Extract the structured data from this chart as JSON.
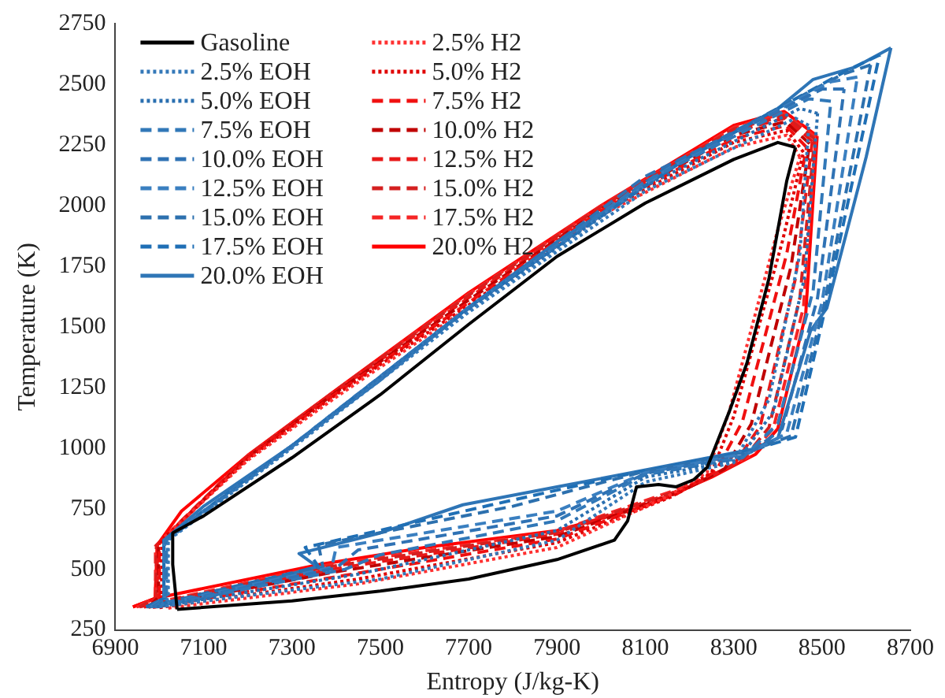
{
  "chart_data": {
    "type": "line",
    "xlabel": "Entropy (J/kg-K)",
    "ylabel": "Temperature (K)",
    "xlim": [
      6900,
      8700
    ],
    "xticks": [
      6900,
      7100,
      7300,
      7500,
      7700,
      7900,
      8100,
      8300,
      8500,
      8700
    ],
    "ylim": [
      250,
      2750
    ],
    "yticks": [
      250,
      500,
      750,
      1000,
      1250,
      1500,
      1750,
      2000,
      2250,
      2500,
      2750
    ],
    "grid": false,
    "legend": "top left",
    "series": [
      {
        "name": "Gasoline",
        "color": "#000000",
        "line_style": "solid",
        "x": [
          7040,
          7300,
          7500,
          7700,
          7900,
          8030,
          8060,
          8080,
          8130,
          8170,
          8210,
          8240,
          8290,
          8330,
          8380,
          8420,
          8440
        ],
        "values": [
          335,
          370,
          410,
          460,
          540,
          620,
          700,
          840,
          850,
          840,
          870,
          920,
          1150,
          1350,
          1700,
          2100,
          2240
        ]
      },
      {
        "color": "#000000",
        "line_style": "solid",
        "x": [
          8440,
          8400,
          8300,
          8100,
          7900,
          7700,
          7500,
          7300,
          7100,
          7030,
          7030,
          7040
        ],
        "values": [
          2240,
          2260,
          2190,
          2010,
          1790,
          1510,
          1220,
          960,
          720,
          650,
          520,
          335
        ]
      },
      {
        "name": "2.5% EOH",
        "color": "#3579b9",
        "line_style": "dotted",
        "x": [
          7000,
          7500,
          7900,
          8100,
          8300,
          8380,
          8450,
          8470
        ],
        "values": [
          345,
          460,
          620,
          860,
          940,
          1200,
          1800,
          2330
        ]
      },
      {
        "color": "#3579b9",
        "line_style": "dotted",
        "x": [
          8470,
          8440,
          8100,
          7700,
          7300,
          7020,
          7020,
          7000
        ],
        "values": [
          2330,
          2360,
          2060,
          1560,
          1000,
          620,
          380,
          345
        ]
      },
      {
        "name": "5.0% EOH",
        "color": "#2a6fb0",
        "line_style": "dotted",
        "x": [
          6995,
          7450,
          7900,
          8100,
          8310,
          8390,
          8460,
          8490
        ],
        "values": [
          345,
          480,
          660,
          880,
          950,
          1150,
          1700,
          2380
        ]
      },
      {
        "color": "#2a6fb0",
        "line_style": "dotted",
        "x": [
          8490,
          8450,
          8100,
          7700,
          7300,
          7018,
          7018,
          6995
        ],
        "values": [
          2380,
          2400,
          2080,
          1570,
          1005,
          620,
          380,
          345
        ]
      },
      {
        "name": "7.5% EOH",
        "color": "#3178b8",
        "line_style": "dashed",
        "x": [
          6990,
          7420,
          7500,
          7900,
          8100,
          8320,
          8400,
          8480,
          8520
        ],
        "values": [
          345,
          500,
          560,
          700,
          890,
          960,
          1100,
          1650,
          2430
        ]
      },
      {
        "color": "#3178b8",
        "line_style": "dashed",
        "x": [
          8520,
          8470,
          8100,
          7700,
          7300,
          7016,
          7016,
          6990
        ],
        "values": [
          2430,
          2440,
          2100,
          1575,
          1005,
          620,
          380,
          345
        ]
      },
      {
        "name": "10.0% EOH",
        "color": "#2f72b4",
        "line_style": "dashed",
        "x": [
          6985,
          7400,
          7450,
          7900,
          8100,
          8330,
          8410,
          8490,
          8550
        ],
        "values": [
          345,
          505,
          580,
          720,
          895,
          970,
          1080,
          1620,
          2480
        ]
      },
      {
        "color": "#2f72b4",
        "line_style": "dashed",
        "x": [
          8550,
          8500,
          8100,
          7700,
          7300,
          7014,
          7014,
          6985
        ],
        "values": [
          2480,
          2480,
          2120,
          1578,
          1008,
          620,
          380,
          345
        ]
      },
      {
        "name": "12.5% EOH",
        "color": "#3a7fc0",
        "line_style": "dashed",
        "x": [
          6980,
          7390,
          7400,
          7900,
          8100,
          8335,
          8420,
          8500,
          8580
        ],
        "values": [
          345,
          508,
          590,
          740,
          898,
          980,
          1060,
          1600,
          2530
        ]
      },
      {
        "color": "#3a7fc0",
        "line_style": "dashed",
        "x": [
          8580,
          8520,
          8150,
          7700,
          7300,
          7012,
          7012,
          6980
        ],
        "values": [
          2530,
          2510,
          2150,
          1580,
          1010,
          620,
          380,
          345
        ]
      },
      {
        "name": "15.0% EOH",
        "color": "#2c70ae",
        "line_style": "dashed",
        "x": [
          6975,
          7370,
          7360,
          7800,
          8090,
          8338,
          8430,
          8505,
          8610
        ],
        "values": [
          345,
          510,
          600,
          760,
          900,
          988,
          1050,
          1590,
          2580
        ]
      },
      {
        "color": "#2c70ae",
        "line_style": "dashed",
        "x": [
          8610,
          8545,
          8150,
          7700,
          7300,
          7011,
          7011,
          6975
        ],
        "values": [
          2580,
          2540,
          2160,
          1580,
          1010,
          620,
          380,
          345
        ]
      },
      {
        "name": "17.5% EOH",
        "color": "#1f6fb5",
        "line_style": "dashed",
        "x": [
          6972,
          7360,
          7330,
          7750,
          8080,
          8339,
          8440,
          8508,
          8630
        ],
        "values": [
          345,
          511,
          590,
          765,
          900,
          990,
          1045,
          1580,
          2620
        ]
      },
      {
        "color": "#1f6fb5",
        "line_style": "dashed",
        "x": [
          8630,
          8560,
          8180,
          7700,
          7300,
          7010,
          7010,
          6972
        ],
        "values": [
          2620,
          2560,
          2180,
          1580,
          1010,
          620,
          380,
          345
        ]
      },
      {
        "name": "20.0% EOH",
        "color": "#2e75b6",
        "line_style": "solid",
        "x": [
          6970,
          7100,
          7357,
          7316,
          7500,
          7687,
          7900,
          8073,
          8340,
          8400,
          8474,
          8511,
          8600,
          8656
        ],
        "values": [
          345,
          380,
          511,
          565,
          650,
          766,
          840,
          900,
          994,
          1040,
          1483,
          1577,
          2200,
          2650
        ]
      },
      {
        "color": "#2e75b6",
        "line_style": "solid",
        "x": [
          8656,
          8574,
          8480,
          8400,
          8200,
          7900,
          7700,
          7500,
          7300,
          7100,
          7010,
          7010,
          6970
        ],
        "values": [
          2650,
          2570,
          2520,
          2400,
          2200,
          1850,
          1580,
          1280,
          1010,
          760,
          620,
          380,
          345
        ]
      },
      {
        "name": "2.5% H2",
        "color": "#ff3030",
        "line_style": "dotted",
        "x": [
          7020,
          7450,
          7900,
          8150,
          8240,
          8290,
          8400,
          8450
        ],
        "values": [
          340,
          440,
          590,
          800,
          900,
          1150,
          1900,
          2200
        ]
      },
      {
        "color": "#ff3030",
        "line_style": "dotted",
        "x": [
          8450,
          8420,
          8300,
          8000,
          7700,
          7400,
          7200,
          7010,
          7010,
          7020
        ],
        "values": [
          2200,
          2290,
          2240,
          1960,
          1580,
          1210,
          950,
          630,
          380,
          340
        ]
      },
      {
        "name": "5.0% H2",
        "color": "#e00000",
        "line_style": "dotted",
        "x": [
          7000,
          7450,
          7900,
          8160,
          8250,
          8300,
          8410,
          8458
        ],
        "values": [
          342,
          460,
          610,
          800,
          900,
          1130,
          1850,
          2220
        ]
      },
      {
        "color": "#e00000",
        "line_style": "dotted",
        "x": [
          8458,
          8420,
          8300,
          8000,
          7700,
          7400,
          7200,
          7005,
          7005,
          7000
        ],
        "values": [
          2220,
          2310,
          2260,
          1970,
          1590,
          1220,
          955,
          620,
          385,
          342
        ]
      },
      {
        "name": "7.5% H2",
        "color": "#f01010",
        "line_style": "dashed",
        "x": [
          6985,
          7420,
          7900,
          8170,
          8260,
          8320,
          8420,
          8465
        ],
        "values": [
          343,
          475,
          625,
          810,
          905,
          1110,
          1800,
          2240
        ]
      },
      {
        "color": "#f01010",
        "line_style": "dashed",
        "x": [
          8465,
          8418,
          8300,
          8000,
          7700,
          7400,
          7200,
          7000,
          7000,
          6985
        ],
        "values": [
          2240,
          2330,
          2275,
          1980,
          1600,
          1225,
          960,
          610,
          385,
          343
        ]
      },
      {
        "name": "10.0% H2",
        "color": "#c00000",
        "line_style": "dashed",
        "x": [
          6975,
          7400,
          7900,
          8180,
          8280,
          8340,
          8430,
          8472
        ],
        "values": [
          344,
          490,
          635,
          820,
          915,
          1100,
          1750,
          2255
        ]
      },
      {
        "color": "#c00000",
        "line_style": "dashed",
        "x": [
          8472,
          8417,
          8300,
          8000,
          7700,
          7400,
          7200,
          6998,
          6998,
          6975
        ],
        "values": [
          2255,
          2345,
          2290,
          1985,
          1610,
          1230,
          962,
          605,
          385,
          344
        ]
      },
      {
        "name": "12.5% H2",
        "color": "#e81818",
        "line_style": "dashed",
        "x": [
          6965,
          7390,
          7900,
          8190,
          8300,
          8360,
          8440,
          8478
        ],
        "values": [
          344,
          500,
          645,
          830,
          930,
          1090,
          1700,
          2265
        ]
      },
      {
        "color": "#e81818",
        "line_style": "dashed",
        "x": [
          8478,
          8416,
          8300,
          8000,
          7700,
          7400,
          7200,
          6995,
          6995,
          6965
        ],
        "values": [
          2265,
          2360,
          2305,
          1990,
          1620,
          1235,
          965,
          600,
          385,
          344
        ]
      },
      {
        "name": "15.0% H2",
        "color": "#d42020",
        "line_style": "dashed",
        "x": [
          6955,
          7375,
          7900,
          8200,
          8320,
          8380,
          8450,
          8483
        ],
        "values": [
          345,
          508,
          652,
          840,
          950,
          1085,
          1620,
          2275
        ]
      },
      {
        "color": "#d42020",
        "line_style": "dashed",
        "x": [
          8483,
          8415,
          8300,
          8000,
          7700,
          7400,
          7200,
          6993,
          6993,
          6955
        ],
        "values": [
          2275,
          2370,
          2315,
          1995,
          1630,
          1238,
          967,
          598,
          383,
          345
        ]
      },
      {
        "name": "17.5% H2",
        "color": "#f52525",
        "line_style": "dashed",
        "x": [
          6948,
          7365,
          7900,
          8220,
          8335,
          8390,
          8458,
          8486
        ],
        "values": [
          345,
          513,
          656,
          860,
          965,
          1082,
          1580,
          2282
        ]
      },
      {
        "color": "#f52525",
        "line_style": "dashed",
        "x": [
          8486,
          8414,
          8300,
          8000,
          7700,
          7400,
          7200,
          6991,
          6991,
          6948
        ],
        "values": [
          2282,
          2380,
          2322,
          1998,
          1635,
          1239,
          968,
          596,
          382,
          345
        ]
      },
      {
        "name": "20.0% H2",
        "color": "#ff0000",
        "line_style": "solid",
        "x": [
          6940,
          6990,
          7357,
          7600,
          7900,
          8100,
          8250,
          8350,
          8400,
          8463,
          8489
        ],
        "values": [
          345,
          380,
          518,
          590,
          660,
          760,
          880,
          975,
          1080,
          1550,
          2287
        ]
      },
      {
        "color": "#ff0000",
        "line_style": "solid",
        "x": [
          8489,
          8414,
          8300,
          8000,
          7700,
          7400,
          7200,
          7050,
          6995,
          6990,
          6940
        ],
        "values": [
          2287,
          2388,
          2330,
          2000,
          1640,
          1240,
          970,
          740,
          600,
          380,
          345
        ]
      }
    ]
  }
}
